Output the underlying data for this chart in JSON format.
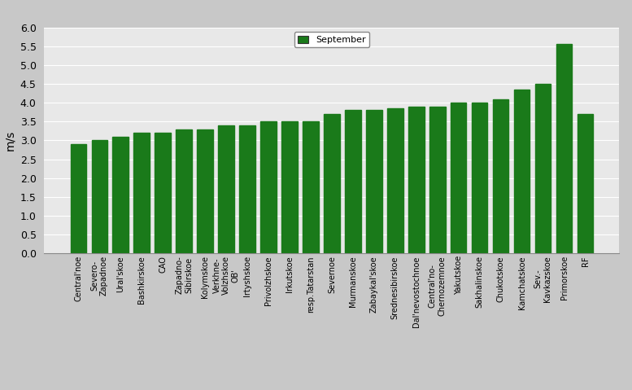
{
  "categories": [
    "Central'noe",
    "Severo-\nZapadnoe",
    "Ural'skoe",
    "Bashkirskoe",
    "CAO",
    "Zapadno-\nSibirskoe",
    "Kolymskoe",
    "Verkhne-\nVolzhskoe\nOB'",
    "Irtyshskoe",
    "Privolzhskoe",
    "Irkutskoe",
    "resp.Tatarstan",
    "Severnoe",
    "Murmanskoe",
    "Zabaykal'skoe",
    "Srednesibirskoe",
    "Dal'nevostochnoe",
    "Central'no-\nChernozemnoe",
    "Yakutskoe",
    "Sakhalinskoe",
    "Chukotskoe",
    "Kamchatskoe",
    "Sev.-\nKavkazskoe",
    "Primorskoe",
    "RF"
  ],
  "values": [
    2.9,
    3.0,
    3.1,
    3.2,
    3.2,
    3.3,
    3.3,
    3.4,
    3.4,
    3.5,
    3.5,
    3.5,
    3.7,
    3.8,
    3.8,
    3.85,
    3.9,
    3.9,
    4.0,
    4.0,
    4.1,
    4.35,
    4.5,
    5.55,
    3.7
  ],
  "bar_color": "#1a7a1a",
  "ylabel": "m/s",
  "ylim": [
    0,
    6
  ],
  "yticks": [
    0,
    0.5,
    1.0,
    1.5,
    2.0,
    2.5,
    3.0,
    3.5,
    4.0,
    4.5,
    5.0,
    5.5,
    6.0
  ],
  "legend_label": "September",
  "legend_color": "#1a7a1a",
  "plot_bg_color": "#e8e8e8",
  "fig_bg_color": "#c8c8c8",
  "label_fontsize": 7,
  "ylabel_fontsize": 10,
  "ytick_fontsize": 9
}
